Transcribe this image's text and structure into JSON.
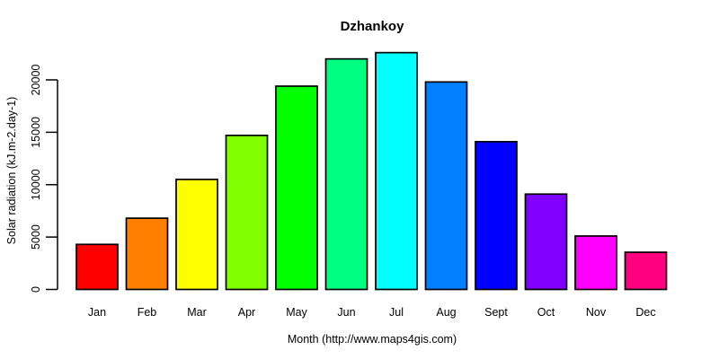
{
  "chart_data": {
    "type": "bar",
    "title": "Dzhankoy",
    "xlabel": "Month (http://www.maps4gis.com)",
    "ylabel": "Solar radiation (kJ.m-2.day-1)",
    "categories": [
      "Jan",
      "Feb",
      "Mar",
      "Apr",
      "May",
      "Jun",
      "Jul",
      "Aug",
      "Sept",
      "Oct",
      "Nov",
      "Dec"
    ],
    "values": [
      4300,
      6800,
      10500,
      14700,
      19400,
      22000,
      22600,
      19800,
      14100,
      9100,
      5100,
      3550
    ],
    "bar_colors": [
      "#FF0000",
      "#FF8000",
      "#FFFF00",
      "#80FF00",
      "#00FF00",
      "#00FF80",
      "#00FFFF",
      "#0080FF",
      "#0000FF",
      "#8000FF",
      "#FF00FF",
      "#FF0080"
    ],
    "bar_border_color": "#000000",
    "axis_color": "#000000",
    "text_color": "#000000",
    "background": "#FFFFFF",
    "yticks": [
      0,
      5000,
      10000,
      15000,
      20000
    ],
    "ylim": [
      0,
      22600
    ],
    "grid": false,
    "legend_position": "none"
  }
}
